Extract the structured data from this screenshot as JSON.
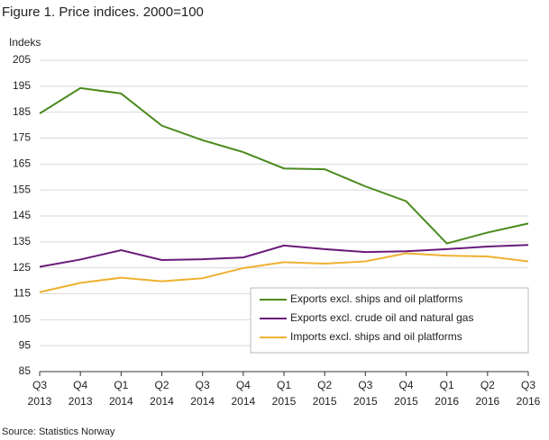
{
  "chart_data": {
    "type": "line",
    "title": "Figure 1. Price indices. 2000=100",
    "y_label": "Indeks",
    "source": "Source: Statistics Norway",
    "categories": [
      "Q3 2013",
      "Q4 2013",
      "Q1 2014",
      "Q2 2014",
      "Q3 2014",
      "Q4 2014",
      "Q1 2015",
      "Q2 2015",
      "Q3 2015",
      "Q4 2015",
      "Q1 2016",
      "Q2 2016",
      "Q3 2016"
    ],
    "series": [
      {
        "name": "Exports excl. ships and oil platforms",
        "color": "#4a8a1c",
        "values": [
          184.5,
          194.3,
          192.2,
          179.8,
          174.2,
          169.6,
          163.3,
          163.0,
          156.4,
          150.7,
          134.4,
          138.6,
          142.1
        ]
      },
      {
        "name": "Exports excl. crude oil and natural gas",
        "color": "#6a1a7a",
        "values": [
          125.4,
          128.2,
          131.8,
          128.0,
          128.3,
          129.0,
          133.6,
          132.2,
          131.1,
          131.4,
          132.2,
          133.2,
          133.8
        ]
      },
      {
        "name": "Imports excl. ships and oil platforms",
        "color": "#f0b030",
        "values": [
          115.6,
          119.2,
          121.2,
          119.8,
          121.0,
          124.9,
          127.2,
          126.6,
          127.5,
          130.6,
          129.7,
          129.4,
          127.5
        ]
      }
    ],
    "ylim": [
      85,
      205
    ],
    "yticks": [
      85,
      95,
      105,
      115,
      125,
      135,
      145,
      155,
      165,
      175,
      185,
      195,
      205
    ],
    "grid": true,
    "legend": "lower-right"
  }
}
